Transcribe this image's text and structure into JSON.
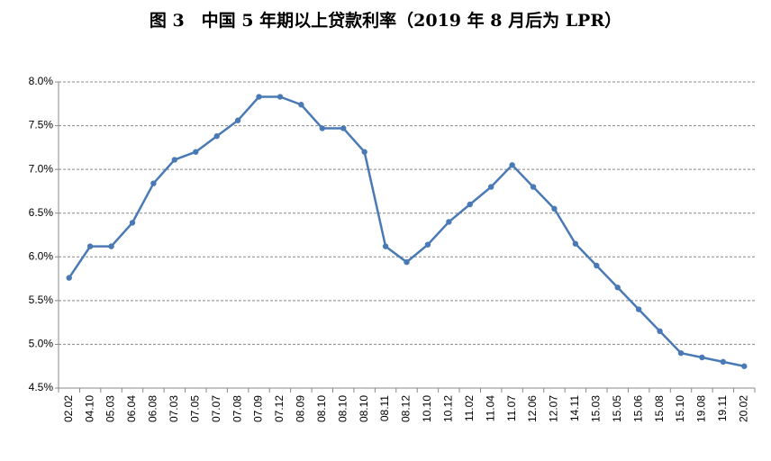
{
  "chart_data": {
    "type": "line",
    "title": "图 3　中国 5 年期以上贷款利率（2019 年 8 月后为 LPR）",
    "categories": [
      "02.02",
      "04.10",
      "05.03",
      "06.04",
      "06.08",
      "07.03",
      "07.05",
      "07.07",
      "07.08",
      "07.09",
      "07.12",
      "08.09",
      "08.10",
      "08.10",
      "08.10",
      "08.11",
      "08.12",
      "10.10",
      "10.12",
      "11.02",
      "11.04",
      "11.07",
      "12.06",
      "12.07",
      "14.11",
      "15.03",
      "15.05",
      "15.06",
      "15.08",
      "15.10",
      "19.08",
      "19.11",
      "20.02"
    ],
    "series": [
      {
        "color": "#4a7ab5",
        "values": [
          5.76,
          6.12,
          6.12,
          6.39,
          6.84,
          7.11,
          7.2,
          7.38,
          7.56,
          7.83,
          7.83,
          7.74,
          7.47,
          7.47,
          7.2,
          6.12,
          5.94,
          6.14,
          6.4,
          6.6,
          6.8,
          7.05,
          6.8,
          6.55,
          6.15,
          5.9,
          5.65,
          5.4,
          5.15,
          4.9,
          4.85,
          4.8,
          4.75
        ]
      }
    ],
    "ylim": [
      4.5,
      8.0
    ],
    "yticks": [
      {
        "value": 4.5,
        "label": "4.5%"
      },
      {
        "value": 5.0,
        "label": "5.0%"
      },
      {
        "value": 5.5,
        "label": "5.5%"
      },
      {
        "value": 6.0,
        "label": "6.0%"
      },
      {
        "value": 6.5,
        "label": "6.5%"
      },
      {
        "value": 7.0,
        "label": "7.0%"
      },
      {
        "value": 7.5,
        "label": "7.5%"
      },
      {
        "value": 8.0,
        "label": "8.0%"
      }
    ],
    "grid": true
  }
}
